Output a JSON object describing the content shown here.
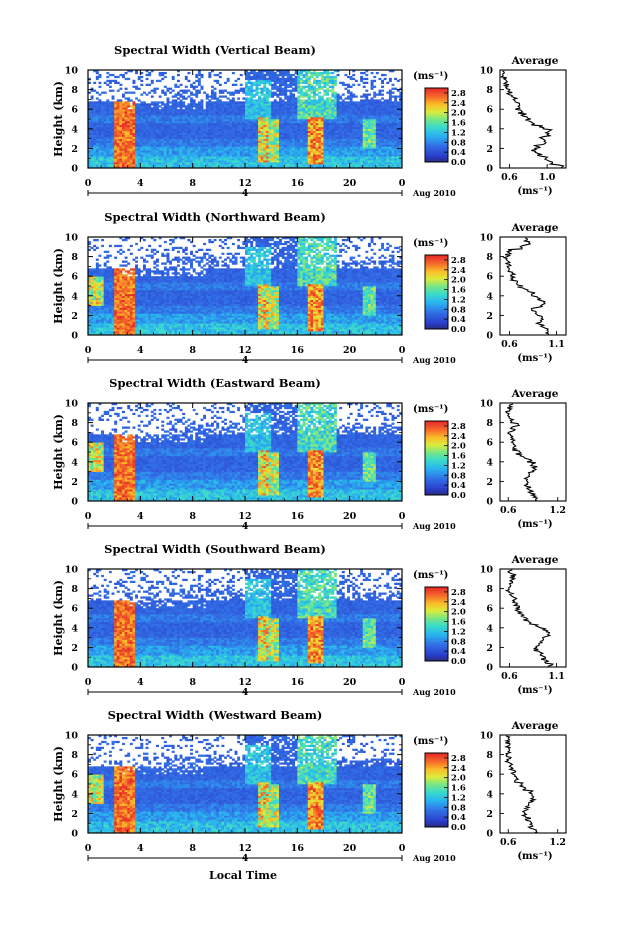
{
  "chart_data": {
    "type": "heatmap",
    "figure_xlabel": "Local Time",
    "date_label": "Aug 2010",
    "day_marker": "4",
    "x_ticks": [
      "0",
      "4",
      "8",
      "12",
      "16",
      "20",
      "0"
    ],
    "y_ticks": [
      "0",
      "2",
      "4",
      "6",
      "8",
      "10"
    ],
    "ylabel": "Height (km)",
    "xlim_hours": [
      0,
      24
    ],
    "ylim_km": [
      0,
      10
    ],
    "colorbar": {
      "unit": "(ms⁻¹)",
      "ticks": [
        "0.0",
        "0.4",
        "0.8",
        "1.2",
        "1.6",
        "2.0",
        "2.4",
        "2.8"
      ],
      "range": [
        0.0,
        3.0
      ]
    },
    "average_title": "Average",
    "average_xlabel": "(ms⁻¹)",
    "panels": [
      {
        "title": "Spectral Width (Vertical Beam)",
        "avg_ticks": [
          "0.6",
          "1.0"
        ],
        "avg_xlim": [
          0.5,
          1.2
        ],
        "avg_profile": {
          "height": [
            0.2,
            0.6,
            1.0,
            1.4,
            1.8,
            2.2,
            2.6,
            3.0,
            3.4,
            3.8,
            4.2,
            4.6,
            5.0,
            5.4,
            5.8,
            6.2,
            6.6,
            7.0,
            7.4,
            7.8,
            8.2,
            8.6,
            9.0,
            9.4,
            9.8
          ],
          "value": [
            1.15,
            1.05,
            0.98,
            0.92,
            0.86,
            0.9,
            0.98,
            0.95,
            1.0,
            1.02,
            0.94,
            0.85,
            0.8,
            0.76,
            0.72,
            0.68,
            0.7,
            0.66,
            0.62,
            0.6,
            0.58,
            0.56,
            0.55,
            0.54,
            0.53
          ]
        }
      },
      {
        "title": "Spectral Width (Northward Beam)",
        "avg_ticks": [
          "0.6",
          "1.1"
        ],
        "avg_xlim": [
          0.5,
          1.2
        ],
        "avg_profile": {
          "height": [
            0.2,
            0.6,
            1.0,
            1.4,
            1.8,
            2.2,
            2.6,
            3.0,
            3.4,
            3.8,
            4.2,
            4.6,
            5.0,
            5.4,
            5.8,
            6.2,
            6.6,
            7.0,
            7.4,
            7.8,
            8.2,
            8.6,
            9.0,
            9.4,
            9.8
          ],
          "value": [
            1.02,
            0.98,
            0.95,
            0.92,
            0.96,
            0.9,
            0.86,
            0.92,
            0.95,
            0.9,
            0.84,
            0.78,
            0.72,
            0.68,
            0.65,
            0.63,
            0.62,
            0.6,
            0.58,
            0.57,
            0.58,
            0.6,
            0.72,
            0.8,
            0.76
          ]
        }
      },
      {
        "title": "Spectral Width (Eastward Beam)",
        "avg_ticks": [
          "0.6",
          "1.2"
        ],
        "avg_xlim": [
          0.5,
          1.3
        ],
        "avg_profile": {
          "height": [
            0.2,
            0.6,
            1.0,
            1.4,
            1.8,
            2.2,
            2.6,
            3.0,
            3.4,
            3.8,
            4.2,
            4.6,
            5.0,
            5.4,
            5.8,
            6.2,
            6.6,
            7.0,
            7.4,
            7.8,
            8.2,
            8.6,
            9.0,
            9.4,
            9.8
          ],
          "value": [
            0.95,
            0.9,
            0.88,
            0.85,
            0.82,
            0.8,
            0.83,
            0.88,
            0.92,
            0.9,
            0.85,
            0.78,
            0.72,
            0.68,
            0.66,
            0.65,
            0.64,
            0.63,
            0.66,
            0.7,
            0.66,
            0.62,
            0.6,
            0.62,
            0.64
          ]
        }
      },
      {
        "title": "Spectral Width (Southward Beam)",
        "avg_ticks": [
          "0.6",
          "1.1"
        ],
        "avg_xlim": [
          0.5,
          1.2
        ],
        "avg_profile": {
          "height": [
            0.2,
            0.6,
            1.0,
            1.4,
            1.8,
            2.2,
            2.6,
            3.0,
            3.4,
            3.8,
            4.2,
            4.6,
            5.0,
            5.4,
            5.8,
            6.2,
            6.6,
            7.0,
            7.4,
            7.8,
            8.2,
            8.6,
            9.0,
            9.4,
            9.8
          ],
          "value": [
            1.05,
            1.0,
            0.96,
            0.92,
            0.88,
            0.9,
            0.94,
            0.98,
            1.02,
            0.98,
            0.9,
            0.82,
            0.76,
            0.72,
            0.7,
            0.68,
            0.66,
            0.64,
            0.62,
            0.6,
            0.58,
            0.6,
            0.62,
            0.64,
            0.6
          ]
        }
      },
      {
        "title": "Spectral Width (Westward Beam)",
        "avg_ticks": [
          "0.6",
          "1.2"
        ],
        "avg_xlim": [
          0.5,
          1.3
        ],
        "avg_profile": {
          "height": [
            0.2,
            0.6,
            1.0,
            1.4,
            1.8,
            2.2,
            2.6,
            3.0,
            3.4,
            3.8,
            4.2,
            4.6,
            5.0,
            5.4,
            5.8,
            6.2,
            6.6,
            7.0,
            7.4,
            7.8,
            8.2,
            8.6,
            9.0,
            9.4,
            9.8
          ],
          "value": [
            0.92,
            0.88,
            0.86,
            0.84,
            0.8,
            0.78,
            0.82,
            0.86,
            0.9,
            0.92,
            0.88,
            0.8,
            0.74,
            0.7,
            0.68,
            0.66,
            0.64,
            0.62,
            0.6,
            0.6,
            0.6,
            0.6,
            0.6,
            0.6,
            0.6
          ]
        }
      }
    ],
    "features": {
      "high_width_columns_hours": [
        2.8,
        13.4,
        14.2,
        17.5
      ],
      "data_ceiling_km": 6.8
    }
  }
}
